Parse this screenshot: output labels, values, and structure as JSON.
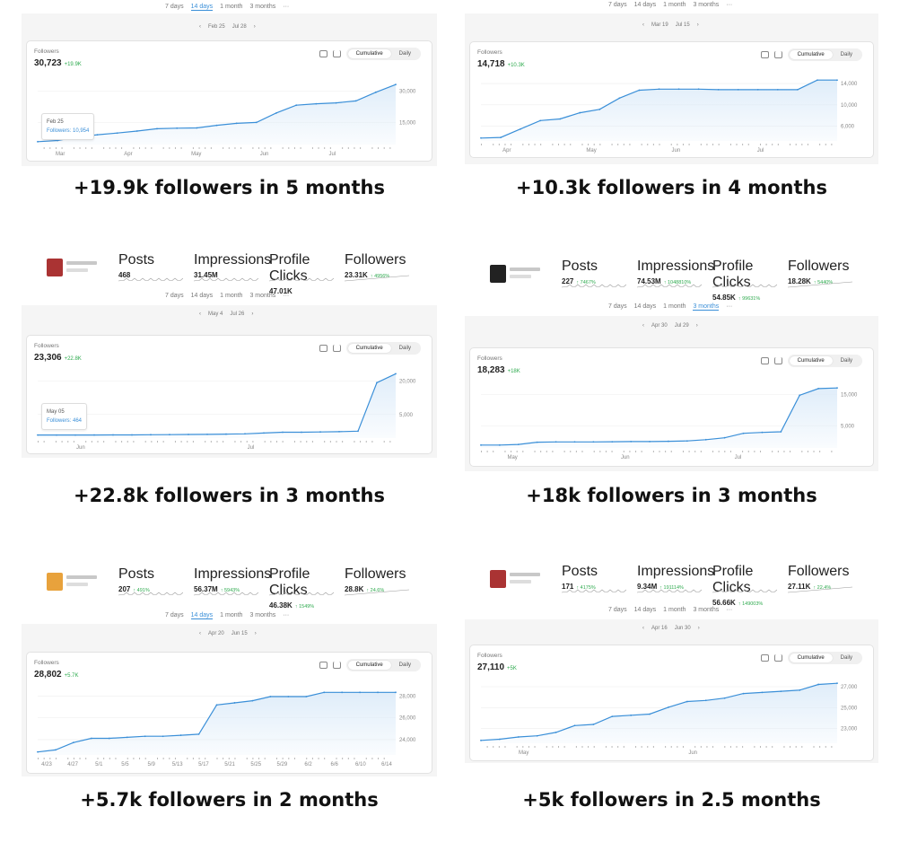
{
  "colors": {
    "accent": "#3a8fd8",
    "positive": "#2eaa4e",
    "fill": "#dcebf9"
  },
  "panels": [
    {
      "range_tabs": [
        "7 days",
        "14 days",
        "1 month",
        "3 months",
        "···"
      ],
      "active_range": 1,
      "date_range": {
        "prev": "‹",
        "start": "Feb 25",
        "end": "Jul 28",
        "next": "›"
      },
      "card": {
        "label": "Followers",
        "total": "30,723",
        "delta": "+19.9K",
        "toggle": [
          "Cumulative",
          "Daily"
        ],
        "y_ticks": [
          "30,000",
          "15,000"
        ],
        "x_ticks": [
          "Mar",
          "Apr",
          "May",
          "Jun",
          "Jul"
        ]
      },
      "tooltip": {
        "date": "Feb 25",
        "value": "Followers: 10,954"
      },
      "caption": "+19.9k followers in 5 months",
      "chart_data": {
        "type": "area",
        "series": [
          {
            "name": "Followers",
            "values": [
              10.8,
              11.2,
              12.4,
              13.2,
              13.8,
              14.5,
              15.3,
              15.5,
              15.6,
              16.5,
              17.2,
              17.5,
              20.8,
              23.5,
              24.0,
              24.3,
              25.0,
              28.0,
              30.7
            ]
          }
        ]
      }
    },
    {
      "range_tabs": [
        "7 days",
        "14 days",
        "1 month",
        "3 months",
        "···"
      ],
      "active_range": -1,
      "date_range": {
        "prev": "‹",
        "start": "Mar 19",
        "end": "Jul 15",
        "next": "›"
      },
      "card": {
        "label": "Followers",
        "total": "14,718",
        "delta": "+10.3K",
        "toggle": [
          "Cumulative",
          "Daily"
        ],
        "y_ticks": [
          "14,000",
          "10,000",
          "6,000"
        ],
        "x_ticks": [
          "Apr",
          "May",
          "Jun",
          "Jul"
        ]
      },
      "caption": "+10.3k followers in 4 months",
      "chart_data": {
        "type": "area",
        "series": [
          {
            "name": "Followers",
            "values": [
              4.4,
              4.5,
              6.0,
              7.5,
              7.8,
              8.9,
              9.5,
              11.5,
              12.9,
              13.1,
              13.1,
              13.1,
              13.0,
              13.0,
              13.0,
              13.0,
              13.0,
              14.7,
              14.7
            ]
          }
        ]
      }
    },
    {
      "profile": {
        "stats": [
          {
            "label": "Posts",
            "value": "468",
            "delta": ""
          },
          {
            "label": "Impressions",
            "value": "31.45M",
            "delta": ""
          },
          {
            "label": "Profile Clicks",
            "value": "47.01K",
            "delta": ""
          },
          {
            "label": "Followers",
            "value": "23.31K",
            "delta": "↑ 4956%"
          }
        ]
      },
      "range_tabs": [
        "7 days",
        "14 days",
        "1 month",
        "3 months",
        "···"
      ],
      "active_range": -1,
      "date_range": {
        "prev": "‹",
        "start": "May 4",
        "end": "Jul 26",
        "next": "›"
      },
      "card": {
        "label": "Followers",
        "total": "23,306",
        "delta": "+22.8K",
        "toggle": [
          "Cumulative",
          "Daily"
        ],
        "y_ticks": [
          "20,000",
          "5,000"
        ],
        "x_ticks": [
          "Jun",
          "Jul"
        ]
      },
      "tooltip": {
        "date": "May 05",
        "value": "Followers: 464"
      },
      "caption": "+22.8k followers in 3 months",
      "chart_data": {
        "type": "area",
        "series": [
          {
            "name": "Followers",
            "values": [
              0.46,
              0.46,
              0.46,
              0.47,
              0.48,
              0.5,
              0.55,
              0.6,
              0.65,
              0.7,
              0.8,
              0.9,
              1.2,
              1.5,
              1.5,
              1.6,
              1.7,
              1.9,
              20.0,
              23.3
            ]
          }
        ]
      }
    },
    {
      "profile": {
        "stats": [
          {
            "label": "Posts",
            "value": "227",
            "delta": "↑ 7467%"
          },
          {
            "label": "Impressions",
            "value": "74.53M",
            "delta": "↑ 1048810%"
          },
          {
            "label": "Profile Clicks",
            "value": "54.85K",
            "delta": "↑ 99631%"
          },
          {
            "label": "Followers",
            "value": "18.28K",
            "delta": "↑ 5440%"
          }
        ]
      },
      "range_tabs": [
        "7 days",
        "14 days",
        "1 month",
        "3 months",
        "···"
      ],
      "active_range": 3,
      "date_range": {
        "prev": "‹",
        "start": "Apr 30",
        "end": "Jul 29",
        "next": "›"
      },
      "card": {
        "label": "Followers",
        "total": "18,283",
        "delta": "+18K",
        "toggle": [
          "Cumulative",
          "Daily"
        ],
        "y_ticks": [
          "15,000",
          "5,000"
        ],
        "x_ticks": [
          "May",
          "Jun",
          "Jul"
        ]
      },
      "caption": "+18k followers in 3 months",
      "chart_data": {
        "type": "area",
        "series": [
          {
            "name": "Followers",
            "values": [
              0.3,
              0.3,
              0.5,
              1.2,
              1.3,
              1.3,
              1.3,
              1.35,
              1.4,
              1.4,
              1.5,
              1.6,
              2.0,
              2.6,
              4.0,
              4.3,
              4.5,
              16.0,
              18.1,
              18.3
            ]
          }
        ]
      }
    },
    {
      "profile": {
        "stats": [
          {
            "label": "Posts",
            "value": "207",
            "delta": "↑ 491%"
          },
          {
            "label": "Impressions",
            "value": "56.37M",
            "delta": "↑ 5943%"
          },
          {
            "label": "Profile Clicks",
            "value": "46.38K",
            "delta": "↑ 1549%"
          },
          {
            "label": "Followers",
            "value": "28.8K",
            "delta": "↑ 24.6%"
          }
        ]
      },
      "range_tabs": [
        "7 days",
        "14 days",
        "1 month",
        "3 months",
        "···"
      ],
      "active_range": 1,
      "date_range": {
        "prev": "‹",
        "start": "Apr 20",
        "end": "Jun 15",
        "next": "›"
      },
      "card": {
        "label": "Followers",
        "total": "28,802",
        "delta": "+5.7K",
        "toggle": [
          "Cumulative",
          "Daily"
        ],
        "y_ticks": [
          "28,000",
          "26,000",
          "24,000"
        ],
        "x_ticks": [
          "4/23",
          "4/27",
          "5/1",
          "5/5",
          "5/9",
          "5/13",
          "5/17",
          "5/21",
          "5/25",
          "5/29",
          "6/2",
          "6/6",
          "6/10",
          "6/14"
        ]
      },
      "caption": "+5.7k followers in 2 months",
      "chart_data": {
        "type": "area",
        "series": [
          {
            "name": "Followers",
            "values": [
              23.1,
              23.3,
              24.0,
              24.4,
              24.4,
              24.5,
              24.6,
              24.6,
              24.7,
              24.8,
              27.6,
              27.8,
              28.0,
              28.4,
              28.4,
              28.4,
              28.8,
              28.8,
              28.8,
              28.8,
              28.8
            ]
          }
        ]
      }
    },
    {
      "profile": {
        "stats": [
          {
            "label": "Posts",
            "value": "171",
            "delta": "↑ 4175%"
          },
          {
            "label": "Impressions",
            "value": "9.34M",
            "delta": "↑ 191114%"
          },
          {
            "label": "Profile Clicks",
            "value": "56.66K",
            "delta": "↑ 149003%"
          },
          {
            "label": "Followers",
            "value": "27.11K",
            "delta": "↑ 22.4%"
          }
        ]
      },
      "range_tabs": [
        "7 days",
        "14 days",
        "1 month",
        "3 months",
        "···"
      ],
      "active_range": -1,
      "date_range": {
        "prev": "‹",
        "start": "Apr 16",
        "end": "Jun 30",
        "next": "›"
      },
      "card": {
        "label": "Followers",
        "total": "27,110",
        "delta": "+5K",
        "toggle": [
          "Cumulative",
          "Daily"
        ],
        "y_ticks": [
          "27,000",
          "25,000",
          "23,000"
        ],
        "x_ticks": [
          "May",
          "Jun"
        ]
      },
      "caption": "+5k followers in 2.5 months",
      "chart_data": {
        "type": "area",
        "series": [
          {
            "name": "Followers",
            "values": [
              22.1,
              22.2,
              22.4,
              22.5,
              22.8,
              23.4,
              23.5,
              24.2,
              24.3,
              24.4,
              25.0,
              25.5,
              25.6,
              25.8,
              26.2,
              26.3,
              26.4,
              26.5,
              27.0,
              27.1
            ]
          }
        ]
      }
    }
  ]
}
